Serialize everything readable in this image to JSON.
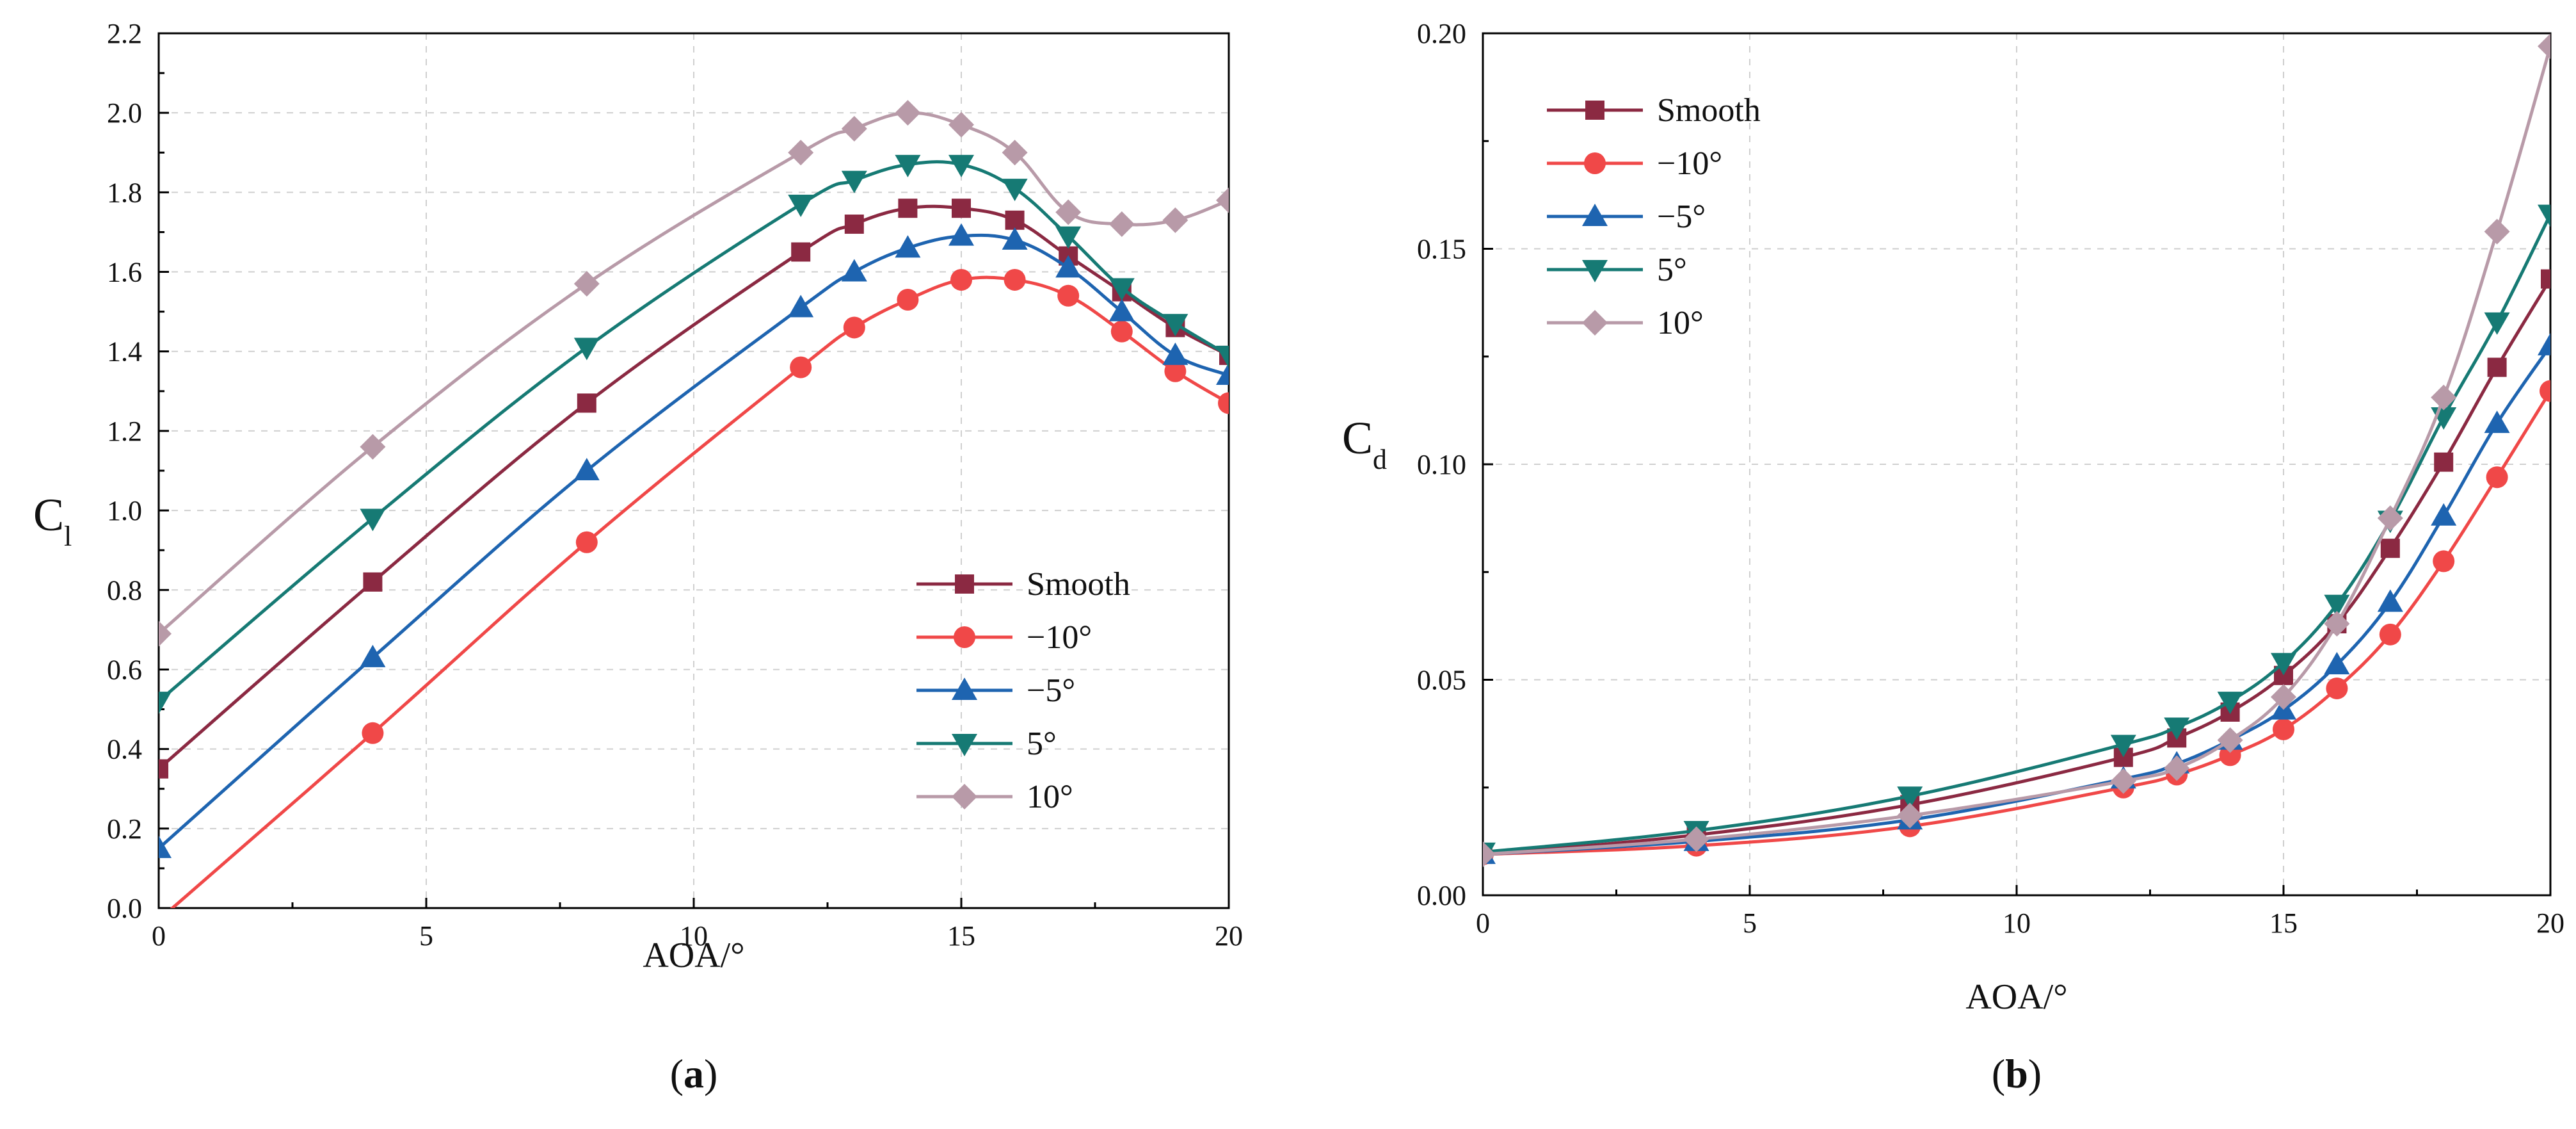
{
  "colors": {
    "smooth": "#8b2942",
    "m10": "#f04848",
    "m5": "#1e64b0",
    "p5": "#167a74",
    "p10": "#b89aa8"
  },
  "chart_data": [
    {
      "type": "line",
      "panel_label": "a",
      "xlabel": "AOA/°",
      "ylabel_main": "C",
      "ylabel_sub": "l",
      "xlim": [
        0,
        20
      ],
      "ylim": [
        0,
        2.2
      ],
      "xticks": [
        "0",
        "5",
        "10",
        "15",
        "20"
      ],
      "yticks": [
        "0.0",
        "0.2",
        "0.4",
        "0.6",
        "0.8",
        "1.0",
        "1.2",
        "1.4",
        "1.6",
        "1.8",
        "2.0",
        "2.2"
      ],
      "grid": true,
      "legend_position": "center-right",
      "x": [
        0,
        4,
        8,
        12,
        13,
        14,
        15,
        16,
        17,
        18,
        19,
        20
      ],
      "series": [
        {
          "name": "Smooth",
          "color_key": "smooth",
          "marker": "square",
          "values": [
            0.35,
            0.82,
            1.27,
            1.65,
            1.72,
            1.76,
            1.76,
            1.73,
            1.64,
            1.55,
            1.46,
            1.39
          ]
        },
        {
          "name": "−10°",
          "color_key": "m10",
          "marker": "circle",
          "values": [
            -0.03,
            0.44,
            0.92,
            1.36,
            1.46,
            1.53,
            1.58,
            1.58,
            1.54,
            1.45,
            1.35,
            1.27
          ]
        },
        {
          "name": "−5°",
          "color_key": "m5",
          "marker": "triangle-up",
          "values": [
            0.15,
            0.63,
            1.1,
            1.51,
            1.6,
            1.66,
            1.69,
            1.68,
            1.61,
            1.5,
            1.39,
            1.34
          ]
        },
        {
          "name": "5°",
          "color_key": "p5",
          "marker": "triangle-down",
          "values": [
            0.52,
            0.98,
            1.41,
            1.77,
            1.83,
            1.87,
            1.87,
            1.81,
            1.69,
            1.56,
            1.47,
            1.39
          ]
        },
        {
          "name": "10°",
          "color_key": "p10",
          "marker": "diamond",
          "values": [
            0.69,
            1.16,
            1.57,
            1.9,
            1.96,
            2.0,
            1.97,
            1.9,
            1.75,
            1.72,
            1.73,
            1.78
          ]
        }
      ]
    },
    {
      "type": "line",
      "panel_label": "b",
      "xlabel": "AOA/°",
      "ylabel_main": "C",
      "ylabel_sub": "d",
      "xlim": [
        0,
        20
      ],
      "ylim": [
        0,
        0.2
      ],
      "xticks": [
        "0",
        "5",
        "10",
        "15",
        "20"
      ],
      "yticks": [
        "0.00",
        "0.05",
        "0.10",
        "0.15",
        "0.20"
      ],
      "grid": true,
      "legend_position": "top-left",
      "x": [
        0,
        4,
        8,
        12,
        13,
        14,
        15,
        16,
        17,
        18,
        19,
        20
      ],
      "series": [
        {
          "name": "Smooth",
          "color_key": "smooth",
          "marker": "square",
          "values": [
            0.0095,
            0.014,
            0.021,
            0.032,
            0.0365,
            0.0425,
            0.051,
            0.063,
            0.0805,
            0.1005,
            0.1225,
            0.143
          ]
        },
        {
          "name": "−10°",
          "color_key": "m10",
          "marker": "circle",
          "values": [
            0.0095,
            0.0115,
            0.016,
            0.025,
            0.028,
            0.0325,
            0.0385,
            0.048,
            0.0605,
            0.0775,
            0.097,
            0.117
          ]
        },
        {
          "name": "−5°",
          "color_key": "m5",
          "marker": "triangle-up",
          "values": [
            0.0095,
            0.0125,
            0.0175,
            0.027,
            0.0305,
            0.036,
            0.043,
            0.0535,
            0.068,
            0.088,
            0.1095,
            0.1275
          ]
        },
        {
          "name": "5°",
          "color_key": "p5",
          "marker": "triangle-down",
          "values": [
            0.01,
            0.015,
            0.023,
            0.035,
            0.039,
            0.045,
            0.054,
            0.0675,
            0.087,
            0.111,
            0.133,
            0.158
          ]
        },
        {
          "name": "10°",
          "color_key": "p10",
          "marker": "diamond",
          "values": [
            0.0095,
            0.013,
            0.0185,
            0.0265,
            0.0295,
            0.036,
            0.046,
            0.063,
            0.0875,
            0.1155,
            0.154,
            0.197
          ]
        }
      ]
    }
  ]
}
